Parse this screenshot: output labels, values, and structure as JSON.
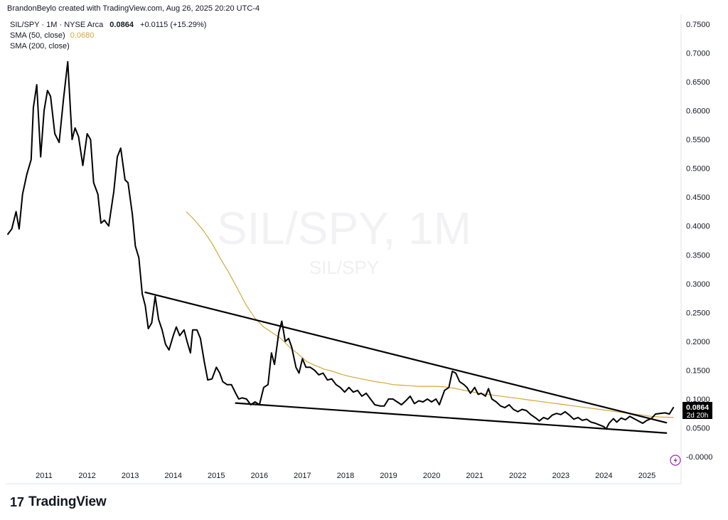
{
  "header": {
    "credit": "BrandonBeylo created with TradingView.com, Aug 26, 2025 20:20 UTC-4"
  },
  "legend": {
    "symbol": "SIL/SPY · 1M · NYSE Arca",
    "last": "0.0864",
    "change": "+0.0115 (+15.29%)",
    "sma50_label": "SMA (50, close)",
    "sma50_value": "0.0680",
    "sma200_label": "SMA (200, close)"
  },
  "watermark": {
    "big": "SIL/SPY, 1M",
    "small": "SIL/SPY"
  },
  "price_label": {
    "value": "0.0864",
    "countdown": "2d 20h"
  },
  "footer": {
    "brand": "TradingView",
    "logo_icon": "tradingview-logo-icon"
  },
  "colors": {
    "price": "#000000",
    "sma50": "#d4a73a",
    "trendline": "#000000",
    "label_bg": "#000000"
  },
  "chart_data": {
    "type": "line",
    "xlabel": "",
    "ylabel": "",
    "x_ticks": [
      "2011",
      "2012",
      "2013",
      "2014",
      "2015",
      "2016",
      "2017",
      "2018",
      "2019",
      "2020",
      "2021",
      "2022",
      "2023",
      "2024",
      "2025"
    ],
    "y_ticks": [
      "0.7500",
      "0.7000",
      "0.6500",
      "0.6000",
      "0.5500",
      "0.5000",
      "0.4500",
      "0.4000",
      "0.3500",
      "0.3000",
      "0.2500",
      "0.2000",
      "0.1500",
      "0.1000",
      "0.0500",
      "-0.0000"
    ],
    "x_range": [
      2010.1,
      2025.9
    ],
    "y_range": [
      -0.02,
      0.77
    ],
    "grid": false,
    "axis_position": "right",
    "series": [
      {
        "name": "SIL/SPY",
        "points": [
          [
            2010.15,
            0.385
          ],
          [
            2010.25,
            0.395
          ],
          [
            2010.35,
            0.425
          ],
          [
            2010.42,
            0.395
          ],
          [
            2010.5,
            0.455
          ],
          [
            2010.6,
            0.49
          ],
          [
            2010.7,
            0.515
          ],
          [
            2010.75,
            0.605
          ],
          [
            2010.83,
            0.645
          ],
          [
            2010.92,
            0.52
          ],
          [
            2011.0,
            0.6
          ],
          [
            2011.08,
            0.635
          ],
          [
            2011.15,
            0.625
          ],
          [
            2011.25,
            0.56
          ],
          [
            2011.35,
            0.545
          ],
          [
            2011.45,
            0.62
          ],
          [
            2011.55,
            0.685
          ],
          [
            2011.65,
            0.55
          ],
          [
            2011.72,
            0.57
          ],
          [
            2011.8,
            0.555
          ],
          [
            2011.9,
            0.505
          ],
          [
            2012.0,
            0.56
          ],
          [
            2012.08,
            0.55
          ],
          [
            2012.15,
            0.475
          ],
          [
            2012.25,
            0.455
          ],
          [
            2012.32,
            0.405
          ],
          [
            2012.4,
            0.41
          ],
          [
            2012.5,
            0.4
          ],
          [
            2012.62,
            0.46
          ],
          [
            2012.7,
            0.52
          ],
          [
            2012.78,
            0.535
          ],
          [
            2012.88,
            0.48
          ],
          [
            2012.95,
            0.475
          ],
          [
            2013.05,
            0.42
          ],
          [
            2013.12,
            0.365
          ],
          [
            2013.2,
            0.345
          ],
          [
            2013.28,
            0.282
          ],
          [
            2013.35,
            0.262
          ],
          [
            2013.42,
            0.222
          ],
          [
            2013.5,
            0.232
          ],
          [
            2013.58,
            0.278
          ],
          [
            2013.66,
            0.238
          ],
          [
            2013.74,
            0.22
          ],
          [
            2013.82,
            0.195
          ],
          [
            2013.9,
            0.185
          ],
          [
            2014.0,
            0.21
          ],
          [
            2014.07,
            0.225
          ],
          [
            2014.15,
            0.21
          ],
          [
            2014.25,
            0.22
          ],
          [
            2014.32,
            0.2
          ],
          [
            2014.4,
            0.18
          ],
          [
            2014.45,
            0.22
          ],
          [
            2014.55,
            0.22
          ],
          [
            2014.63,
            0.205
          ],
          [
            2014.72,
            0.165
          ],
          [
            2014.8,
            0.133
          ],
          [
            2014.9,
            0.135
          ],
          [
            2015.0,
            0.155
          ],
          [
            2015.08,
            0.145
          ],
          [
            2015.15,
            0.13
          ],
          [
            2015.25,
            0.125
          ],
          [
            2015.35,
            0.125
          ],
          [
            2015.45,
            0.11
          ],
          [
            2015.52,
            0.1
          ],
          [
            2015.6,
            0.102
          ],
          [
            2015.7,
            0.1
          ],
          [
            2015.8,
            0.09
          ],
          [
            2015.9,
            0.095
          ],
          [
            2016.0,
            0.09
          ],
          [
            2016.1,
            0.12
          ],
          [
            2016.2,
            0.125
          ],
          [
            2016.28,
            0.18
          ],
          [
            2016.35,
            0.16
          ],
          [
            2016.45,
            0.215
          ],
          [
            2016.52,
            0.235
          ],
          [
            2016.6,
            0.2
          ],
          [
            2016.68,
            0.205
          ],
          [
            2016.75,
            0.19
          ],
          [
            2016.85,
            0.155
          ],
          [
            2016.92,
            0.145
          ],
          [
            2017.0,
            0.17
          ],
          [
            2017.08,
            0.155
          ],
          [
            2017.18,
            0.155
          ],
          [
            2017.28,
            0.15
          ],
          [
            2017.38,
            0.142
          ],
          [
            2017.48,
            0.145
          ],
          [
            2017.58,
            0.133
          ],
          [
            2017.68,
            0.135
          ],
          [
            2017.78,
            0.125
          ],
          [
            2017.88,
            0.12
          ],
          [
            2017.98,
            0.112
          ],
          [
            2018.08,
            0.12
          ],
          [
            2018.18,
            0.112
          ],
          [
            2018.28,
            0.115
          ],
          [
            2018.38,
            0.105
          ],
          [
            2018.48,
            0.11
          ],
          [
            2018.58,
            0.1
          ],
          [
            2018.68,
            0.09
          ],
          [
            2018.8,
            0.088
          ],
          [
            2018.9,
            0.088
          ],
          [
            2019.0,
            0.1
          ],
          [
            2019.1,
            0.1
          ],
          [
            2019.2,
            0.095
          ],
          [
            2019.3,
            0.09
          ],
          [
            2019.4,
            0.097
          ],
          [
            2019.5,
            0.105
          ],
          [
            2019.6,
            0.092
          ],
          [
            2019.7,
            0.097
          ],
          [
            2019.8,
            0.095
          ],
          [
            2019.9,
            0.1
          ],
          [
            2020.0,
            0.095
          ],
          [
            2020.1,
            0.1
          ],
          [
            2020.18,
            0.09
          ],
          [
            2020.3,
            0.115
          ],
          [
            2020.4,
            0.12
          ],
          [
            2020.48,
            0.148
          ],
          [
            2020.56,
            0.145
          ],
          [
            2020.65,
            0.13
          ],
          [
            2020.75,
            0.125
          ],
          [
            2020.82,
            0.12
          ],
          [
            2020.9,
            0.11
          ],
          [
            2021.0,
            0.12
          ],
          [
            2021.08,
            0.108
          ],
          [
            2021.15,
            0.11
          ],
          [
            2021.25,
            0.105
          ],
          [
            2021.32,
            0.118
          ],
          [
            2021.4,
            0.1
          ],
          [
            2021.5,
            0.095
          ],
          [
            2021.6,
            0.088
          ],
          [
            2021.7,
            0.085
          ],
          [
            2021.8,
            0.09
          ],
          [
            2021.9,
            0.082
          ],
          [
            2022.0,
            0.078
          ],
          [
            2022.1,
            0.082
          ],
          [
            2022.2,
            0.08
          ],
          [
            2022.3,
            0.073
          ],
          [
            2022.4,
            0.068
          ],
          [
            2022.5,
            0.062
          ],
          [
            2022.6,
            0.068
          ],
          [
            2022.7,
            0.065
          ],
          [
            2022.8,
            0.072
          ],
          [
            2022.9,
            0.075
          ],
          [
            2023.0,
            0.073
          ],
          [
            2023.1,
            0.078
          ],
          [
            2023.2,
            0.072
          ],
          [
            2023.3,
            0.065
          ],
          [
            2023.4,
            0.068
          ],
          [
            2023.5,
            0.063
          ],
          [
            2023.6,
            0.065
          ],
          [
            2023.7,
            0.06
          ],
          [
            2023.8,
            0.058
          ],
          [
            2023.9,
            0.055
          ],
          [
            2024.0,
            0.052
          ],
          [
            2024.05,
            0.048
          ],
          [
            2024.12,
            0.058
          ],
          [
            2024.22,
            0.066
          ],
          [
            2024.3,
            0.06
          ],
          [
            2024.4,
            0.067
          ],
          [
            2024.5,
            0.064
          ],
          [
            2024.6,
            0.07
          ],
          [
            2024.7,
            0.066
          ],
          [
            2024.8,
            0.062
          ],
          [
            2024.9,
            0.058
          ],
          [
            2025.0,
            0.063
          ],
          [
            2025.1,
            0.066
          ],
          [
            2025.2,
            0.074
          ],
          [
            2025.3,
            0.075
          ],
          [
            2025.42,
            0.076
          ],
          [
            2025.52,
            0.074
          ],
          [
            2025.62,
            0.086
          ]
        ]
      },
      {
        "name": "SMA (50, close)",
        "points": [
          [
            2014.3,
            0.425
          ],
          [
            2014.5,
            0.41
          ],
          [
            2014.7,
            0.392
          ],
          [
            2014.9,
            0.37
          ],
          [
            2015.1,
            0.343
          ],
          [
            2015.3,
            0.318
          ],
          [
            2015.5,
            0.29
          ],
          [
            2015.7,
            0.262
          ],
          [
            2015.9,
            0.24
          ],
          [
            2016.1,
            0.225
          ],
          [
            2016.3,
            0.215
          ],
          [
            2016.5,
            0.205
          ],
          [
            2016.7,
            0.19
          ],
          [
            2016.9,
            0.178
          ],
          [
            2017.1,
            0.165
          ],
          [
            2017.3,
            0.158
          ],
          [
            2017.5,
            0.152
          ],
          [
            2017.7,
            0.148
          ],
          [
            2017.9,
            0.143
          ],
          [
            2018.1,
            0.139
          ],
          [
            2018.3,
            0.136
          ],
          [
            2018.5,
            0.133
          ],
          [
            2018.7,
            0.13
          ],
          [
            2018.9,
            0.128
          ],
          [
            2019.1,
            0.125
          ],
          [
            2019.3,
            0.124
          ],
          [
            2019.5,
            0.123
          ],
          [
            2019.7,
            0.122
          ],
          [
            2019.9,
            0.122
          ],
          [
            2020.1,
            0.122
          ],
          [
            2020.3,
            0.121
          ],
          [
            2020.5,
            0.119
          ],
          [
            2020.7,
            0.116
          ],
          [
            2020.9,
            0.113
          ],
          [
            2021.1,
            0.11
          ],
          [
            2021.3,
            0.108
          ],
          [
            2021.5,
            0.106
          ],
          [
            2021.7,
            0.104
          ],
          [
            2021.9,
            0.102
          ],
          [
            2022.1,
            0.1
          ],
          [
            2022.3,
            0.098
          ],
          [
            2022.5,
            0.096
          ],
          [
            2022.7,
            0.094
          ],
          [
            2022.9,
            0.092
          ],
          [
            2023.1,
            0.09
          ],
          [
            2023.3,
            0.088
          ],
          [
            2023.5,
            0.086
          ],
          [
            2023.7,
            0.084
          ],
          [
            2023.9,
            0.082
          ],
          [
            2024.1,
            0.08
          ],
          [
            2024.3,
            0.078
          ],
          [
            2024.5,
            0.076
          ],
          [
            2024.7,
            0.074
          ],
          [
            2024.9,
            0.072
          ],
          [
            2025.1,
            0.07
          ],
          [
            2025.3,
            0.069
          ],
          [
            2025.62,
            0.068
          ]
        ]
      }
    ],
    "annotations": [
      {
        "name": "upper-trendline",
        "from": [
          2013.35,
          0.285
        ],
        "to": [
          2025.45,
          0.059
        ]
      },
      {
        "name": "lower-trendline",
        "from": [
          2015.45,
          0.093
        ],
        "to": [
          2025.45,
          0.041
        ]
      }
    ]
  }
}
